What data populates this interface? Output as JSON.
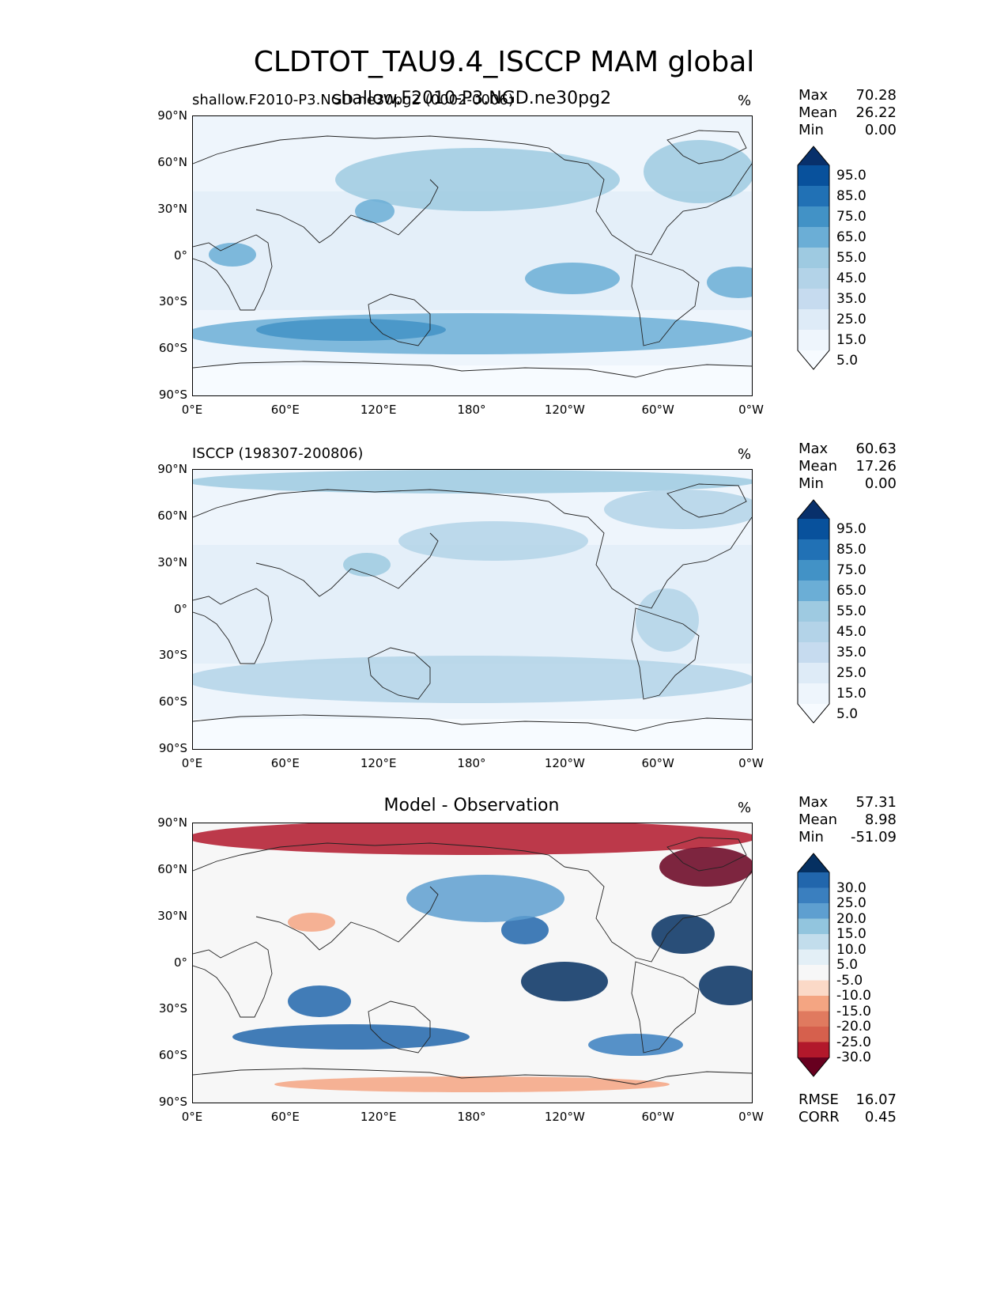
{
  "title": "CLDTOT_TAU9.4_ISCCP MAM global",
  "panels": [
    {
      "id": "test",
      "title_left": "shallow.F2010-P3.NGD.ne30pg2 (0002-0006)",
      "title_center": "shallow.F2010-P3.NGD.ne30pg2",
      "units": "%",
      "stats": [
        {
          "label": "Max",
          "value": "70.28"
        },
        {
          "label": "Mean",
          "value": "26.22"
        },
        {
          "label": "Min",
          "value": "0.00"
        }
      ],
      "colorbar": {
        "labels": [
          "95.0",
          "85.0",
          "75.0",
          "65.0",
          "55.0",
          "45.0",
          "35.0",
          "25.0",
          "15.0",
          "5.0"
        ],
        "colors": [
          "#08306b",
          "#08519c",
          "#2171b5",
          "#4292c6",
          "#6baed6",
          "#9ecae1",
          "#b3d3e8",
          "#c6dbef",
          "#deebf7",
          "#eef5fc",
          "#f7fbff"
        ]
      }
    },
    {
      "id": "ref",
      "title_left": "ISCCP (198307-200806)",
      "title_center": "",
      "units": "%",
      "stats": [
        {
          "label": "Max",
          "value": "60.63"
        },
        {
          "label": "Mean",
          "value": "17.26"
        },
        {
          "label": "Min",
          "value": "0.00"
        }
      ],
      "colorbar": {
        "labels": [
          "95.0",
          "85.0",
          "75.0",
          "65.0",
          "55.0",
          "45.0",
          "35.0",
          "25.0",
          "15.0",
          "5.0"
        ],
        "colors": [
          "#08306b",
          "#08519c",
          "#2171b5",
          "#4292c6",
          "#6baed6",
          "#9ecae1",
          "#b3d3e8",
          "#c6dbef",
          "#deebf7",
          "#eef5fc",
          "#f7fbff"
        ]
      }
    },
    {
      "id": "diff",
      "title_left": "",
      "title_center": "Model - Observation",
      "units": "%",
      "stats": [
        {
          "label": "Max",
          "value": "57.31"
        },
        {
          "label": "Mean",
          "value": "8.98"
        },
        {
          "label": "Min",
          "value": "-51.09"
        }
      ],
      "colorbar": {
        "labels": [
          "30.0",
          "25.0",
          "20.0",
          "15.0",
          "10.0",
          "5.0",
          "-5.0",
          "-10.0",
          "-15.0",
          "-20.0",
          "-25.0",
          "-30.0"
        ],
        "colors": [
          "#053061",
          "#2166ac",
          "#3a7fbf",
          "#5e9fd0",
          "#92c5de",
          "#c2ddec",
          "#e3eff6",
          "#f7f7f7",
          "#fbd9c7",
          "#f4a582",
          "#e07a5f",
          "#d6604d",
          "#b2182b",
          "#67001f"
        ]
      },
      "metrics": [
        {
          "label": "RMSE",
          "value": "16.07"
        },
        {
          "label": "CORR",
          "value": "0.45"
        }
      ]
    }
  ],
  "axes": {
    "lat_labels": [
      "90°N",
      "60°N",
      "30°N",
      "0°",
      "30°S",
      "60°S",
      "90°S"
    ],
    "lon_labels": [
      "0°E",
      "60°E",
      "120°E",
      "180°",
      "120°W",
      "60°W",
      "0°W"
    ]
  }
}
